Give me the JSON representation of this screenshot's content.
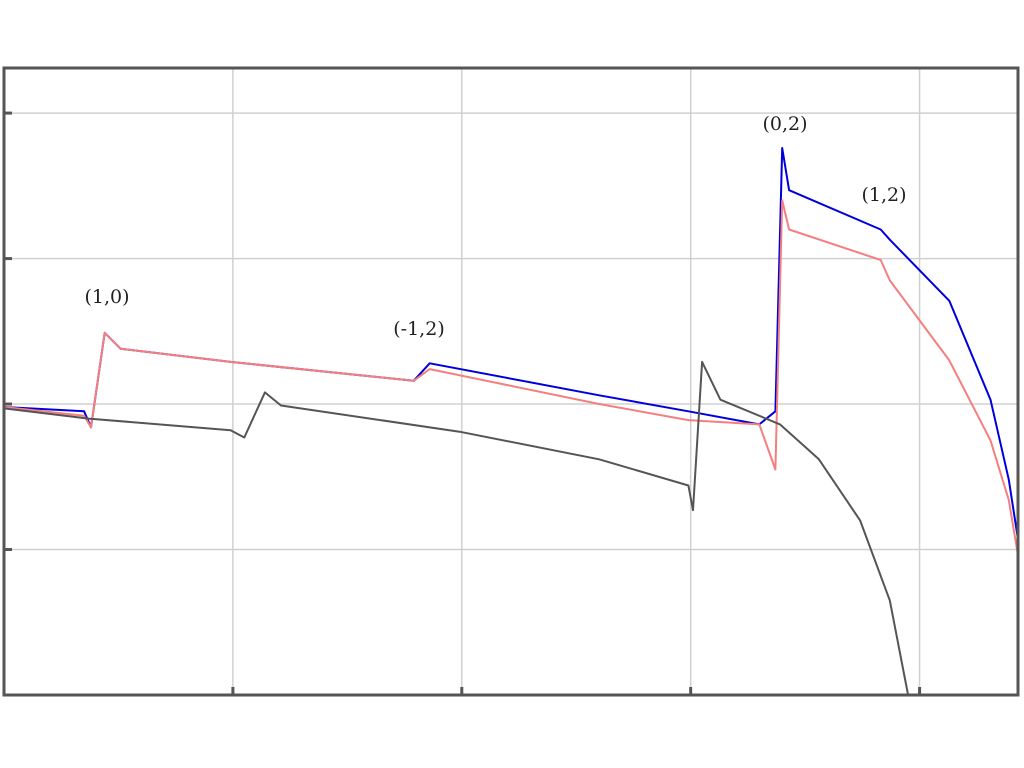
{
  "chart_data": {
    "type": "line",
    "xlim": [
      0,
      4.43
    ],
    "ylim": [
      0,
      4.31
    ],
    "xticks": [
      0,
      1,
      2,
      3,
      4
    ],
    "yticks": [
      0,
      1,
      2,
      3,
      4
    ],
    "grid": true,
    "series": [
      {
        "color": "#0000dd",
        "x": [
          0,
          0.35,
          0.38,
          0.44,
          0.51,
          0.99,
          1.79,
          1.86,
          2.6,
          2.99,
          3.3,
          3.37,
          3.4,
          3.43,
          3.83,
          3.87,
          4.13,
          4.31,
          4.39,
          4.43
        ],
        "values": [
          1.98,
          1.95,
          1.84,
          2.49,
          2.38,
          2.29,
          2.16,
          2.28,
          2.06,
          1.95,
          1.86,
          1.95,
          3.76,
          3.47,
          3.2,
          3.13,
          2.71,
          2.03,
          1.48,
          1.07
        ]
      },
      {
        "color": "#f47f7f",
        "x": [
          0,
          0.35,
          0.38,
          0.44,
          0.51,
          0.99,
          1.79,
          1.86,
          2.6,
          2.99,
          3.3,
          3.37,
          3.4,
          3.43,
          3.83,
          3.87,
          4.13,
          4.31,
          4.39,
          4.43
        ],
        "values": [
          1.98,
          1.92,
          1.84,
          2.49,
          2.38,
          2.29,
          2.16,
          2.24,
          2.0,
          1.89,
          1.86,
          1.55,
          3.4,
          3.2,
          2.99,
          2.85,
          2.3,
          1.75,
          1.34,
          0.96
        ]
      },
      {
        "color": "#555555",
        "x": [
          0,
          0.37,
          0.99,
          1.05,
          1.14,
          1.21,
          1.99,
          2.6,
          2.99,
          3.01,
          3.05,
          3.13,
          3.39,
          3.56,
          3.74,
          3.87,
          3.95
        ],
        "values": [
          1.97,
          1.9,
          1.82,
          1.77,
          2.08,
          1.99,
          1.81,
          1.62,
          1.44,
          1.27,
          2.29,
          2.03,
          1.86,
          1.62,
          1.2,
          0.65,
          0
        ]
      }
    ],
    "annotations": [
      "(1,0)",
      "(-1,2)",
      "(0,2)",
      "(1,2)"
    ]
  }
}
